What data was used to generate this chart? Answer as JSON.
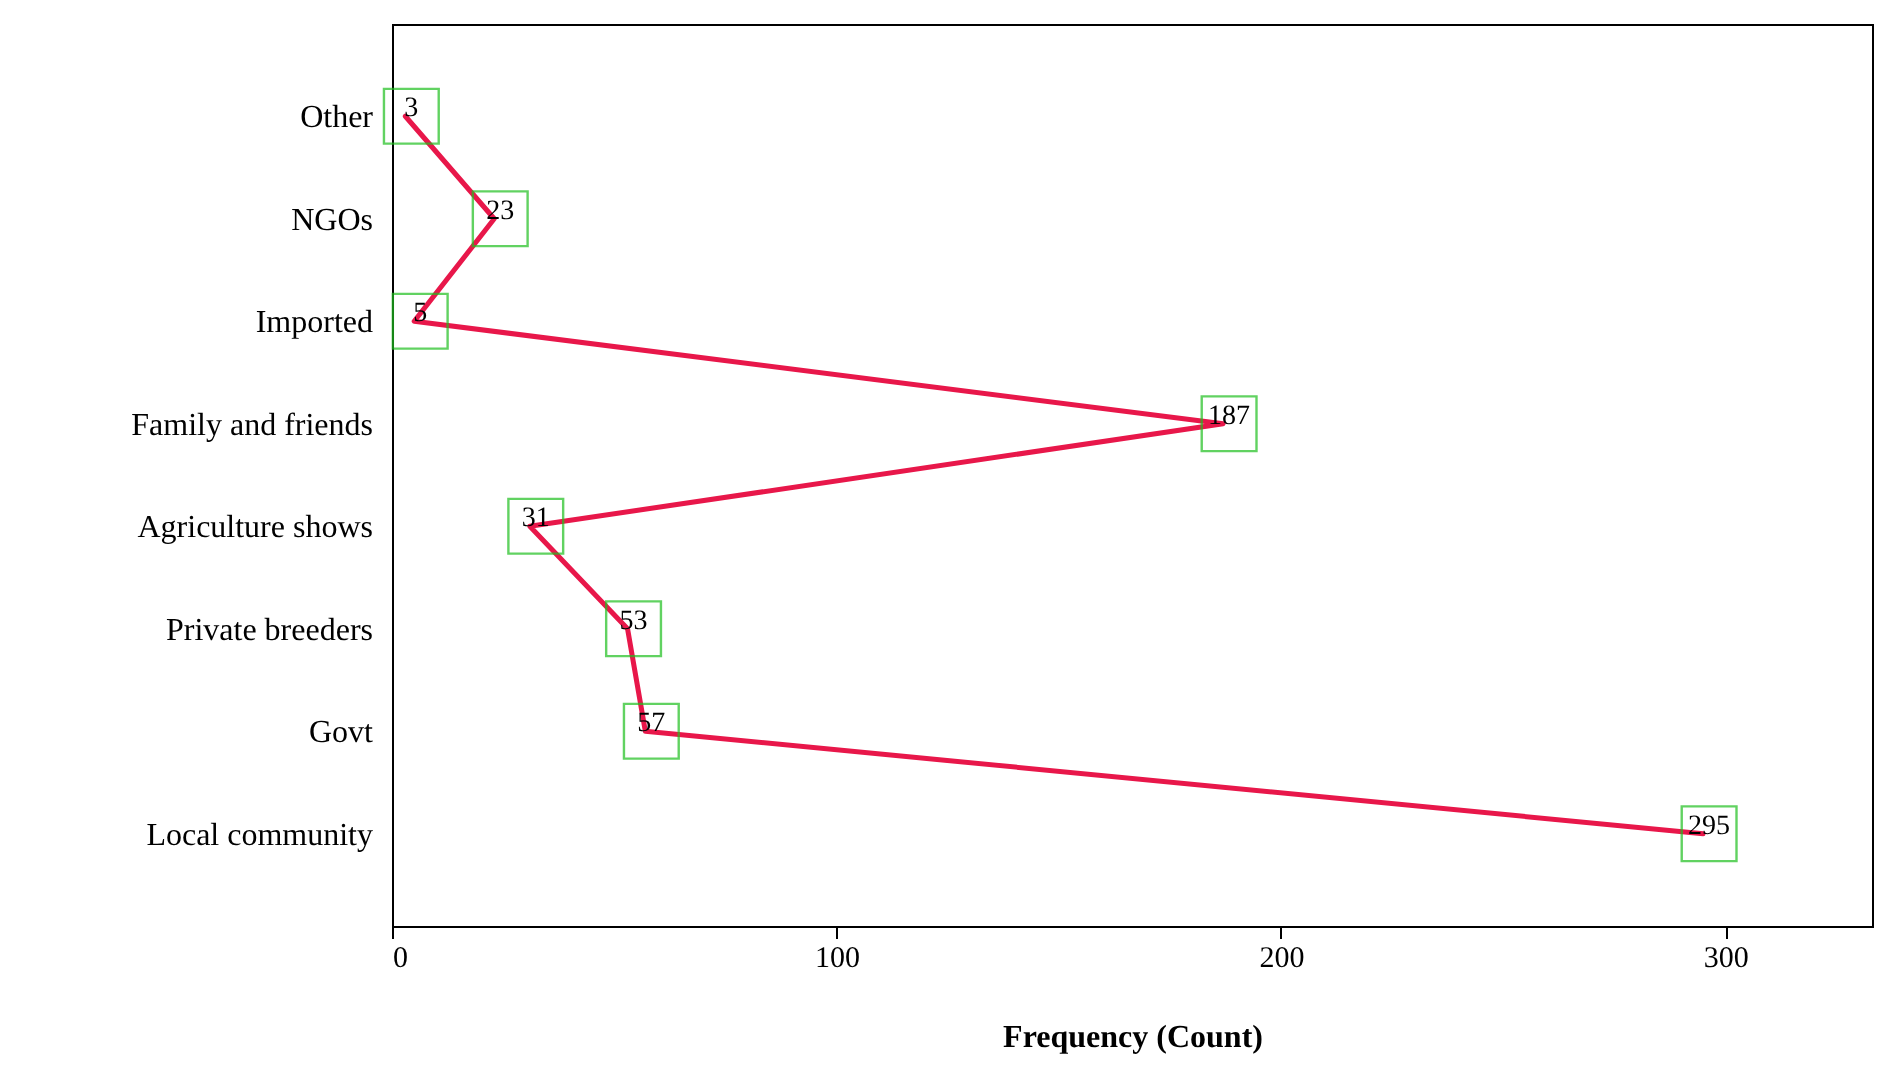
{
  "chart_data": {
    "type": "line",
    "orientation": "horizontal",
    "xlabel": "Frequency (Count)",
    "categories": [
      "Other",
      "NGOs",
      "Imported",
      "Family and friends",
      "Agriculture shows",
      "Private breeders",
      "Govt",
      "Local community"
    ],
    "series": [
      {
        "color": "#e8174a",
        "values": [
          3,
          23,
          5,
          187,
          31,
          53,
          57,
          295
        ]
      }
    ],
    "xlim": [
      0,
      333
    ],
    "xticks": [
      0,
      100,
      200,
      300
    ],
    "grid": false,
    "data_labels": true
  }
}
